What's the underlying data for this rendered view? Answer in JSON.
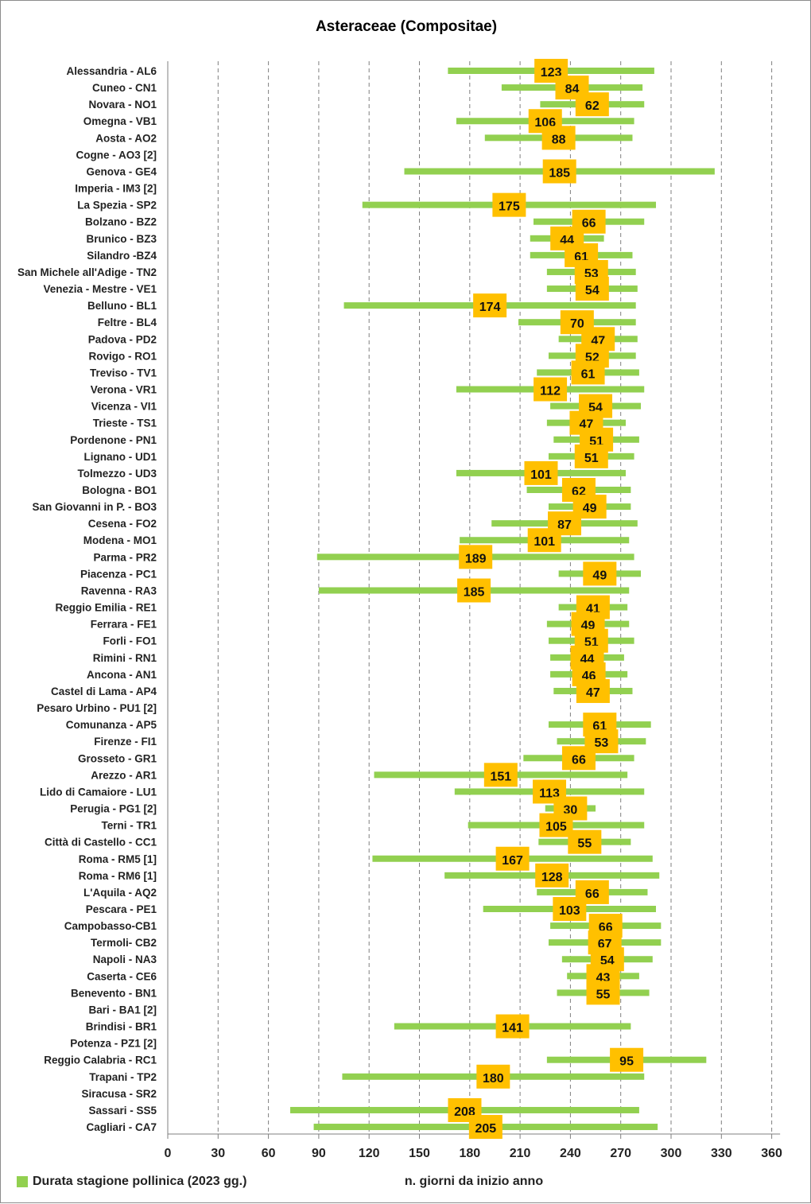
{
  "chart_data": {
    "type": "bar",
    "orientation": "horizontal-floating",
    "title": "Asteraceae (Compositae)",
    "xlabel": "n. giorni da inizio anno",
    "ylabel": "",
    "xlim": [
      0,
      365
    ],
    "xticks": [
      0,
      30,
      60,
      90,
      120,
      150,
      180,
      210,
      240,
      270,
      300,
      330,
      360
    ],
    "grid": true,
    "legend": {
      "position": "bottom-left",
      "label": "Durata stagione pollinica (2023 gg.)"
    },
    "series_color": "#92d050",
    "label_box_color": "#ffc000",
    "stations": [
      {
        "name": "Alessandria - AL6",
        "start": 167,
        "end": 290,
        "duration": "123"
      },
      {
        "name": "Cuneo - CN1",
        "start": 199,
        "end": 283,
        "duration": "84"
      },
      {
        "name": "Novara - NO1",
        "start": 222,
        "end": 284,
        "duration": "62"
      },
      {
        "name": "Omegna - VB1",
        "start": 172,
        "end": 278,
        "duration": "106"
      },
      {
        "name": "Aosta - AO2",
        "start": 189,
        "end": 277,
        "duration": "88"
      },
      {
        "name": "Cogne - AO3 [2]",
        "start": null,
        "end": null,
        "duration": ""
      },
      {
        "name": "Genova - GE4",
        "start": 141,
        "end": 326,
        "duration": "185"
      },
      {
        "name": "Imperia - IM3 [2]",
        "start": null,
        "end": null,
        "duration": ""
      },
      {
        "name": "La Spezia - SP2",
        "start": 116,
        "end": 291,
        "duration": "175"
      },
      {
        "name": "Bolzano - BZ2",
        "start": 218,
        "end": 284,
        "duration": "66"
      },
      {
        "name": "Brunico - BZ3",
        "start": 216,
        "end": 260,
        "duration": "44"
      },
      {
        "name": "Silandro -BZ4",
        "start": 216,
        "end": 277,
        "duration": "61"
      },
      {
        "name": "San Michele all'Adige - TN2",
        "start": 226,
        "end": 279,
        "duration": "53"
      },
      {
        "name": "Venezia - Mestre - VE1",
        "start": 226,
        "end": 280,
        "duration": "54"
      },
      {
        "name": "Belluno - BL1",
        "start": 105,
        "end": 279,
        "duration": "174"
      },
      {
        "name": "Feltre - BL4",
        "start": 209,
        "end": 279,
        "duration": "70"
      },
      {
        "name": "Padova - PD2",
        "start": 233,
        "end": 280,
        "duration": "47"
      },
      {
        "name": "Rovigo - RO1",
        "start": 227,
        "end": 279,
        "duration": "52"
      },
      {
        "name": "Treviso - TV1",
        "start": 220,
        "end": 281,
        "duration": "61"
      },
      {
        "name": "Verona - VR1",
        "start": 172,
        "end": 284,
        "duration": "112"
      },
      {
        "name": "Vicenza - VI1",
        "start": 228,
        "end": 282,
        "duration": "54"
      },
      {
        "name": "Trieste - TS1",
        "start": 226,
        "end": 273,
        "duration": "47"
      },
      {
        "name": "Pordenone - PN1",
        "start": 230,
        "end": 281,
        "duration": "51"
      },
      {
        "name": "Lignano - UD1",
        "start": 227,
        "end": 278,
        "duration": "51"
      },
      {
        "name": "Tolmezzo - UD3",
        "start": 172,
        "end": 273,
        "duration": "101"
      },
      {
        "name": "Bologna - BO1",
        "start": 214,
        "end": 276,
        "duration": "62"
      },
      {
        "name": "San Giovanni in P. - BO3",
        "start": 227,
        "end": 276,
        "duration": "49"
      },
      {
        "name": "Cesena - FO2",
        "start": 193,
        "end": 280,
        "duration": "87"
      },
      {
        "name": "Modena - MO1",
        "start": 174,
        "end": 275,
        "duration": "101"
      },
      {
        "name": "Parma - PR2",
        "start": 89,
        "end": 278,
        "duration": "189"
      },
      {
        "name": "Piacenza - PC1",
        "start": 233,
        "end": 282,
        "duration": "49"
      },
      {
        "name": "Ravenna - RA3",
        "start": 90,
        "end": 275,
        "duration": "185"
      },
      {
        "name": "Reggio Emilia - RE1",
        "start": 233,
        "end": 274,
        "duration": "41"
      },
      {
        "name": "Ferrara - FE1",
        "start": 226,
        "end": 275,
        "duration": "49"
      },
      {
        "name": "Forli - FO1",
        "start": 227,
        "end": 278,
        "duration": "51"
      },
      {
        "name": "Rimini - RN1",
        "start": 228,
        "end": 272,
        "duration": "44"
      },
      {
        "name": "Ancona - AN1",
        "start": 228,
        "end": 274,
        "duration": "46"
      },
      {
        "name": "Castel di Lama - AP4",
        "start": 230,
        "end": 277,
        "duration": "47"
      },
      {
        "name": "Pesaro Urbino - PU1 [2]",
        "start": null,
        "end": null,
        "duration": ""
      },
      {
        "name": "Comunanza - AP5",
        "start": 227,
        "end": 288,
        "duration": "61"
      },
      {
        "name": "Firenze - FI1",
        "start": 232,
        "end": 285,
        "duration": "53"
      },
      {
        "name": "Grosseto - GR1",
        "start": 212,
        "end": 278,
        "duration": "66"
      },
      {
        "name": "Arezzo - AR1",
        "start": 123,
        "end": 274,
        "duration": "151"
      },
      {
        "name": "Lido di Camaiore - LU1",
        "start": 171,
        "end": 284,
        "duration": "113"
      },
      {
        "name": "Perugia - PG1 [2]",
        "start": 225,
        "end": 255,
        "duration": "30"
      },
      {
        "name": "Terni - TR1",
        "start": 179,
        "end": 284,
        "duration": "105"
      },
      {
        "name": "Città di Castello - CC1",
        "start": 221,
        "end": 276,
        "duration": "55"
      },
      {
        "name": "Roma - RM5 [1]",
        "start": 122,
        "end": 289,
        "duration": "167"
      },
      {
        "name": "Roma - RM6 [1]",
        "start": 165,
        "end": 293,
        "duration": "128"
      },
      {
        "name": "L'Aquila - AQ2",
        "start": 220,
        "end": 286,
        "duration": "66"
      },
      {
        "name": "Pescara - PE1",
        "start": 188,
        "end": 291,
        "duration": "103"
      },
      {
        "name": "Campobasso-CB1",
        "start": 228,
        "end": 294,
        "duration": "66"
      },
      {
        "name": "Termoli- CB2",
        "start": 227,
        "end": 294,
        "duration": "67"
      },
      {
        "name": "Napoli - NA3",
        "start": 235,
        "end": 289,
        "duration": "54"
      },
      {
        "name": "Caserta - CE6",
        "start": 238,
        "end": 281,
        "duration": "43"
      },
      {
        "name": "Benevento  - BN1",
        "start": 232,
        "end": 287,
        "duration": "55"
      },
      {
        "name": "Bari - BA1 [2]",
        "start": null,
        "end": null,
        "duration": ""
      },
      {
        "name": "Brindisi - BR1",
        "start": 135,
        "end": 276,
        "duration": "141"
      },
      {
        "name": "Potenza - PZ1 [2]",
        "start": null,
        "end": null,
        "duration": ""
      },
      {
        "name": "Reggio Calabria - RC1",
        "start": 226,
        "end": 321,
        "duration": "95"
      },
      {
        "name": "Trapani - TP2",
        "start": 104,
        "end": 284,
        "duration": "180"
      },
      {
        "name": "Siracusa - SR2",
        "start": null,
        "end": null,
        "duration": ""
      },
      {
        "name": "Sassari - SS5",
        "start": 73,
        "end": 281,
        "duration": "208"
      },
      {
        "name": "Cagliari - CA7",
        "start": 87,
        "end": 292,
        "duration": "205"
      }
    ]
  }
}
